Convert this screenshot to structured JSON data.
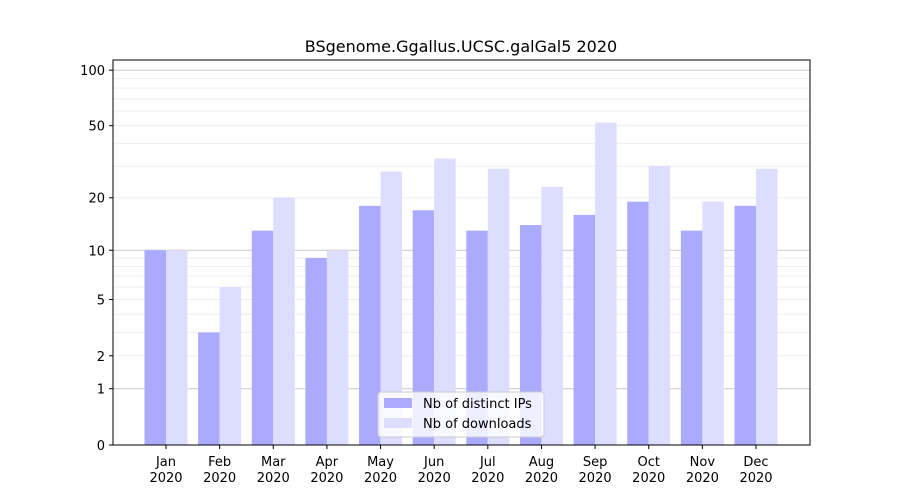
{
  "chart_data": {
    "type": "bar",
    "title": "BSgenome.Ggallus.UCSC.galGal5 2020",
    "xlabel": "",
    "ylabel": "",
    "yscale": "log(1+x)",
    "ylim": [
      0,
      113
    ],
    "yticks": [
      0,
      1,
      2,
      5,
      10,
      20,
      50,
      100
    ],
    "grid": true,
    "legend_placement": "bottom-center",
    "categories": [
      "Jan",
      "Feb",
      "Mar",
      "Apr",
      "May",
      "Jun",
      "Jul",
      "Aug",
      "Sep",
      "Oct",
      "Nov",
      "Dec"
    ],
    "category_year": "2020",
    "series": [
      {
        "name": "Nb of distinct IPs",
        "color": "#aaaaff",
        "values": [
          10,
          3,
          13,
          9,
          18,
          17,
          13,
          14,
          16,
          19,
          13,
          18
        ]
      },
      {
        "name": "Nb of downloads",
        "color": "#ddddff",
        "values": [
          10,
          6,
          20,
          10,
          28,
          33,
          29,
          23,
          52,
          30,
          19,
          29
        ]
      }
    ]
  }
}
